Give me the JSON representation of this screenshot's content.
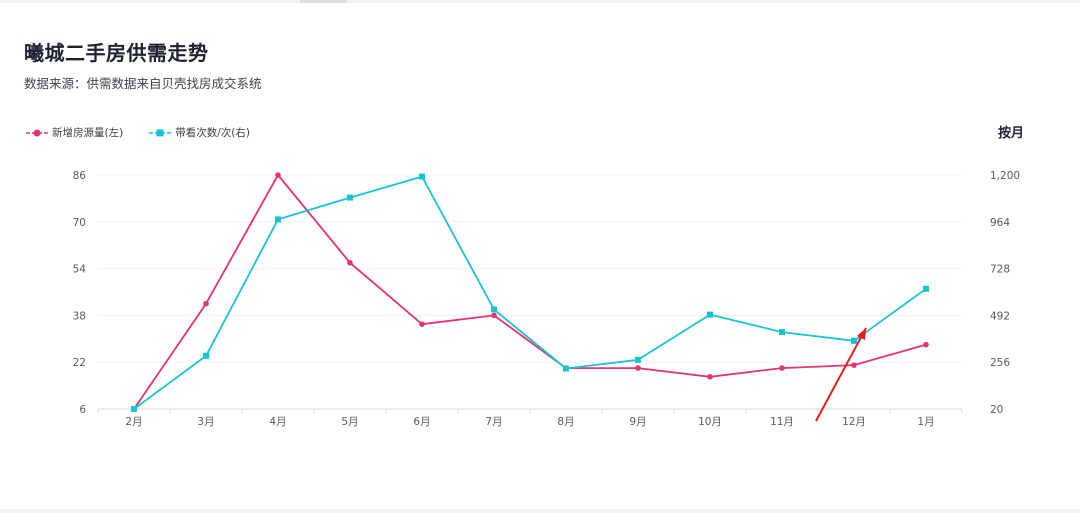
{
  "title": "曦城二手房供需走势",
  "subtitle": "数据来源：供需数据来自贝壳找房成交系统",
  "period_toggle": "按月",
  "colors": {
    "supply": "#e6336e",
    "views": "#19c3d6",
    "arrow": "#e0211a"
  },
  "chart_data": {
    "type": "line",
    "categories": [
      "2月",
      "3月",
      "4月",
      "5月",
      "6月",
      "7月",
      "8月",
      "9月",
      "10月",
      "11月",
      "12月",
      "1月"
    ],
    "series": [
      {
        "name": "新增房源量(左)",
        "axis": "left",
        "marker": "circle",
        "values": [
          6,
          42,
          86,
          56,
          35,
          38,
          20,
          20,
          17,
          20,
          21,
          28
        ]
      },
      {
        "name": "带看次数/次(右)",
        "axis": "right",
        "marker": "square",
        "values": [
          20,
          288,
          976,
          1086,
          1192,
          522,
          224,
          268,
          496,
          408,
          364,
          626
        ]
      }
    ],
    "y_left": {
      "ticks": [
        "6",
        "22",
        "38",
        "54",
        "70",
        "86"
      ],
      "range": [
        6,
        86
      ]
    },
    "y_right": {
      "ticks": [
        "20",
        "256",
        "492",
        "728",
        "964",
        "1,200"
      ],
      "range": [
        20,
        1200
      ]
    },
    "grid": true,
    "legend_position": "top-left",
    "annotation": "red arrow pointing at 12月 (right series)"
  }
}
